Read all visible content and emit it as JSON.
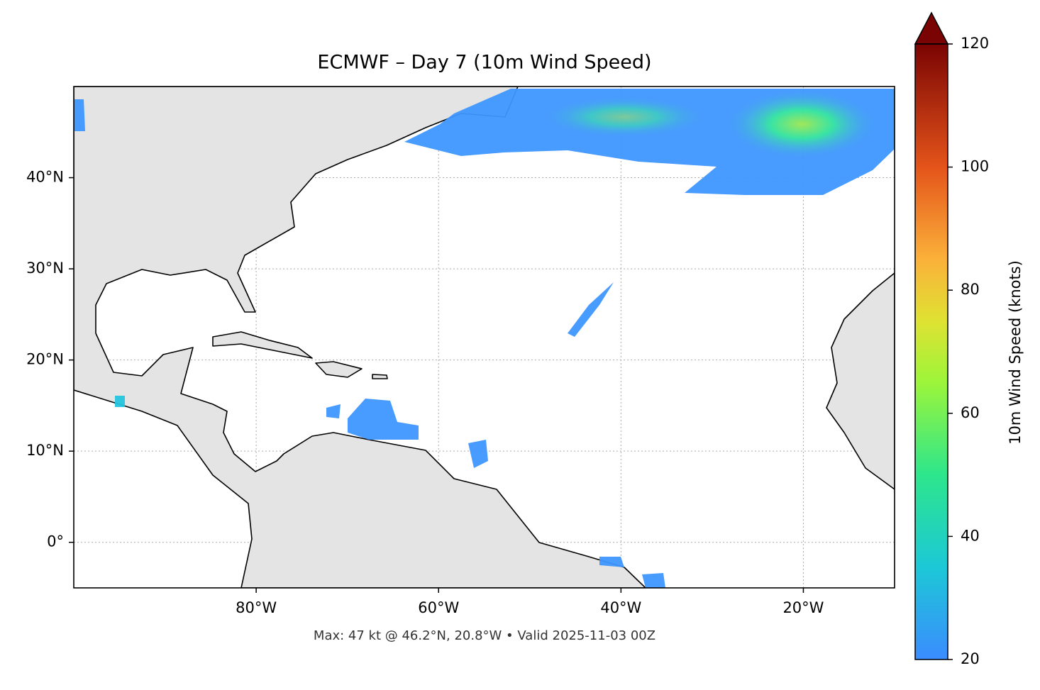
{
  "title": "ECMWF – Day 7 (10m Wind Speed)",
  "footnote": "Max: 47 kt @ 46.2°N, 20.8°W • Valid 2025-11-03 00Z",
  "xlim": [
    -100,
    -10
  ],
  "ylim": [
    -5,
    50
  ],
  "xticks": [
    {
      "value": -80,
      "label": "80°W"
    },
    {
      "value": -60,
      "label": "60°W"
    },
    {
      "value": -40,
      "label": "40°W"
    },
    {
      "value": -20,
      "label": "20°W"
    }
  ],
  "yticks": [
    {
      "value": 0,
      "label": "0°"
    },
    {
      "value": 10,
      "label": "10°N"
    },
    {
      "value": 20,
      "label": "20°N"
    },
    {
      "value": 30,
      "label": "30°N"
    },
    {
      "value": 40,
      "label": "40°N"
    }
  ],
  "grid": true,
  "colorbar": {
    "label": "10m Wind Speed (knots)",
    "lim": [
      20,
      120
    ],
    "ticks": [
      20,
      40,
      60,
      80,
      100,
      120
    ]
  }
}
